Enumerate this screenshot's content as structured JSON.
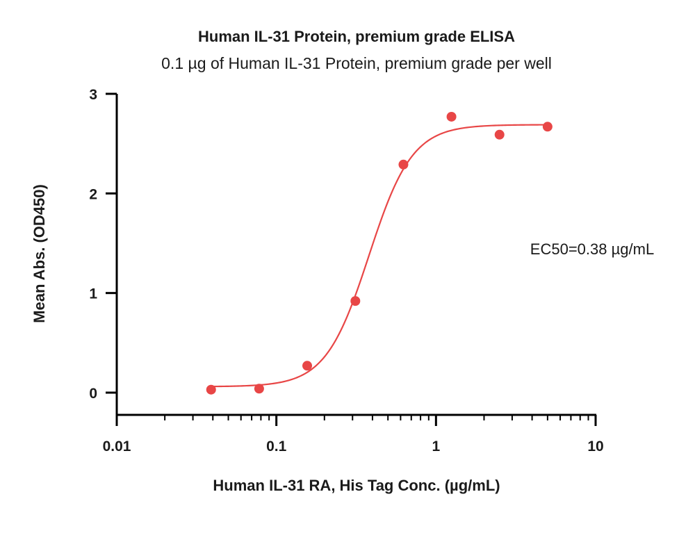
{
  "chart_data": {
    "type": "scatter",
    "title": "Human IL-31 Protein, premium grade ELISA",
    "subtitle": "0.1 µg of Human IL-31 Protein, premium grade per well",
    "xlabel": "Human IL-31 RA, His Tag Conc. (µg/mL)",
    "ylabel": "Mean Abs. (OD450)",
    "x_scale": "log",
    "xlim": [
      0.01,
      10
    ],
    "ylim": [
      -0.2,
      3
    ],
    "x_ticks": [
      0.01,
      0.1,
      1,
      10
    ],
    "x_tick_labels": [
      "0.01",
      "0.1",
      "1",
      "10"
    ],
    "y_ticks": [
      0,
      1,
      2,
      3
    ],
    "y_tick_labels": [
      "0",
      "1",
      "2",
      "3"
    ],
    "grid": false,
    "series": [
      {
        "x": [
          0.039,
          0.078,
          0.156,
          0.3125,
          0.625,
          1.25,
          2.5,
          5
        ],
        "y": [
          0.03,
          0.04,
          0.27,
          0.92,
          2.29,
          2.77,
          2.59,
          2.67
        ],
        "color": "#e84646",
        "fit": {
          "type": "4PL",
          "bottom": 0.06,
          "top": 2.69,
          "ec50": 0.38,
          "hill": 3.2,
          "x_range": [
            0.039,
            5
          ]
        }
      }
    ],
    "annotation": "EC50=0.38 µg/mL"
  }
}
